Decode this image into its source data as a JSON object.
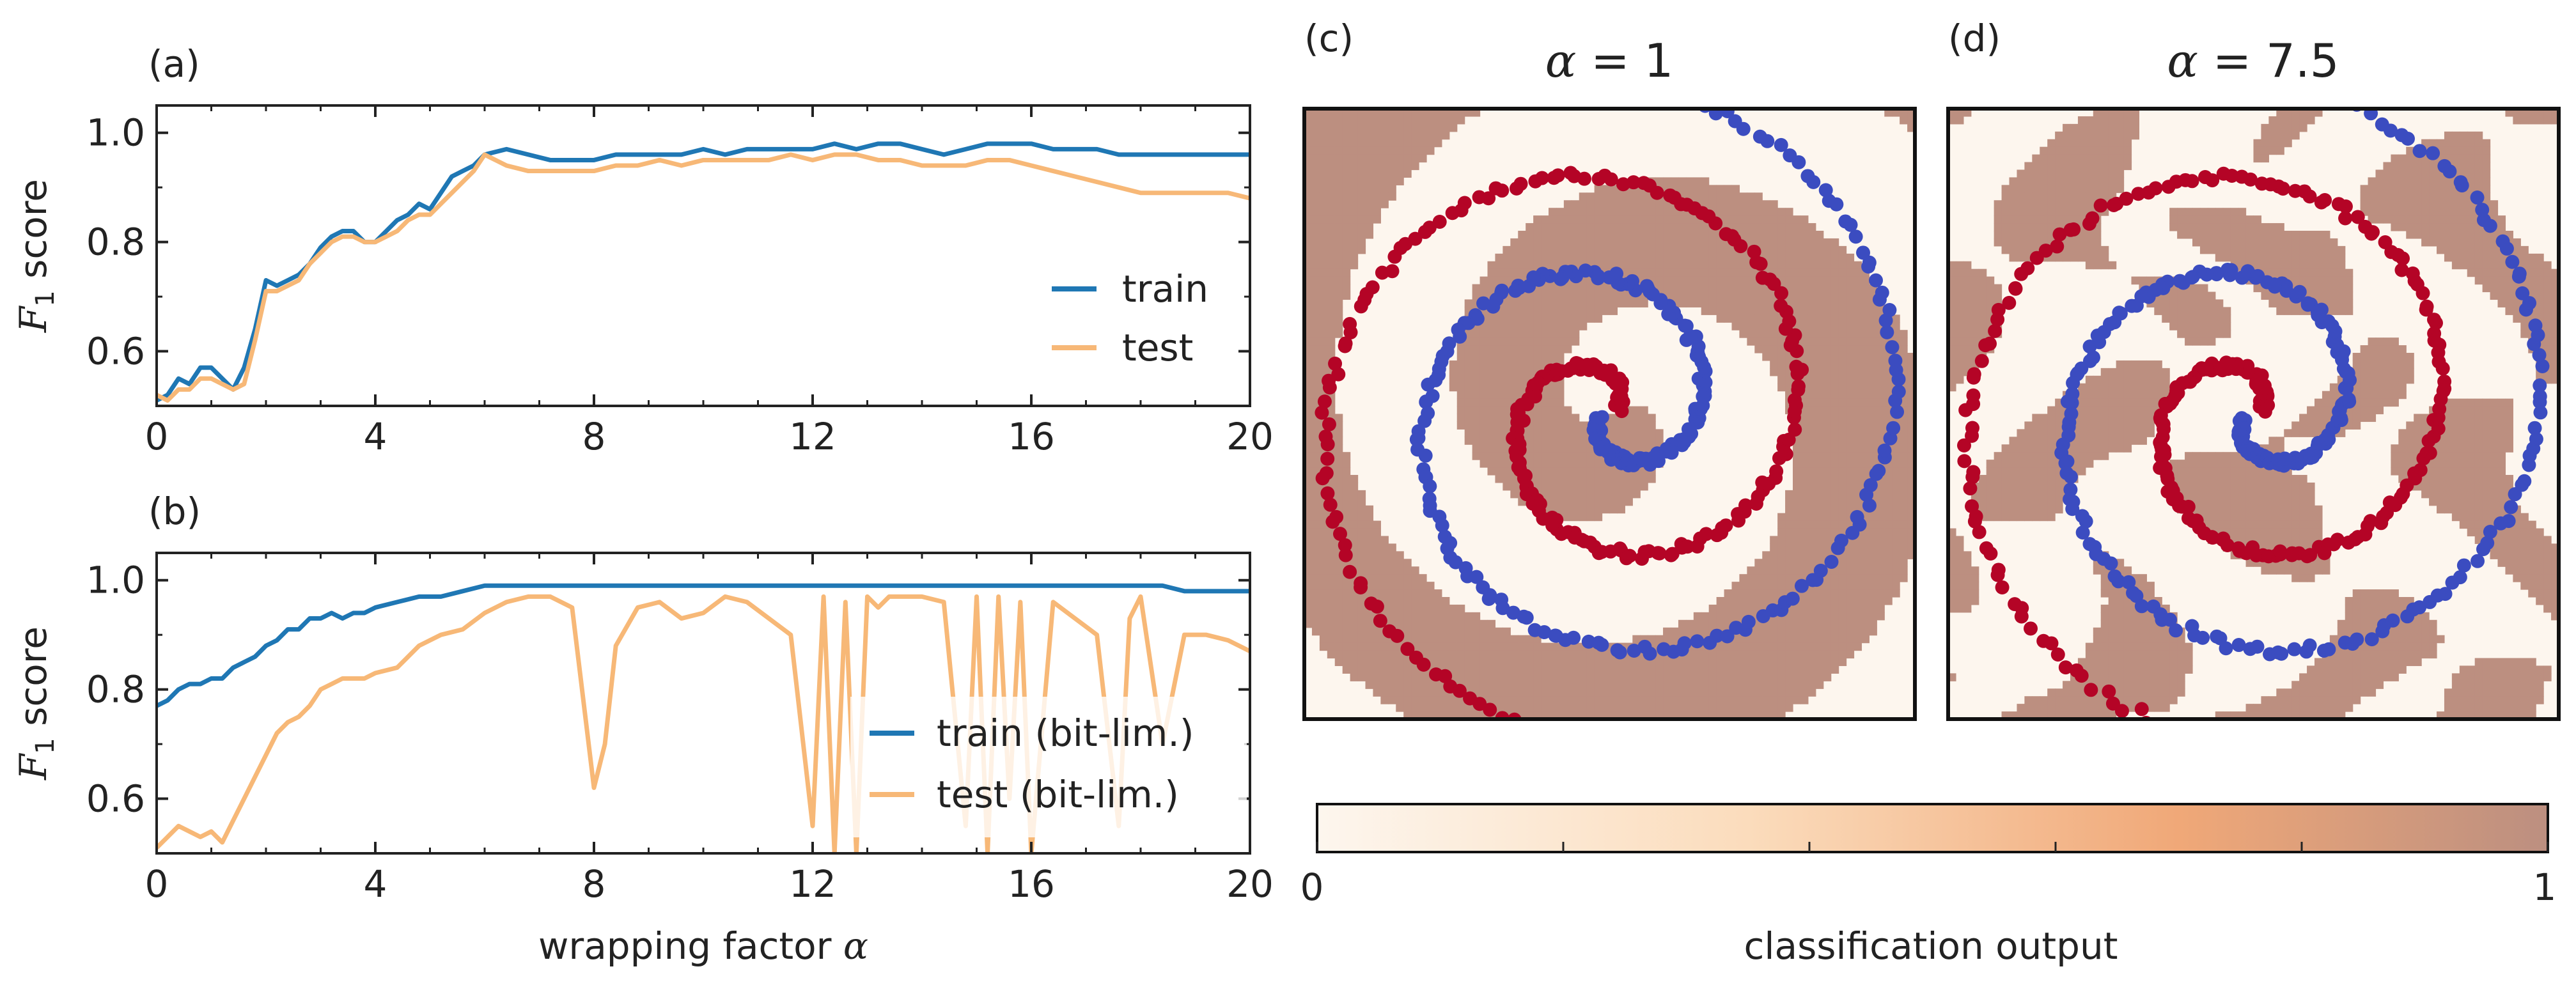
{
  "colors": {
    "train": "#1f77b4",
    "test": "#f7b877",
    "spiral_red": "#b40426",
    "spiral_blue": "#3b4cc0",
    "region_low": "#fdf6ee",
    "region_high": "#bc8f80"
  },
  "chart_data": [
    {
      "id": "a",
      "type": "line",
      "panel_label": "(a)",
      "xlabel": "",
      "ylabel_prefix": "F",
      "ylabel_sub": "1",
      "ylabel_suffix": " score",
      "xlim": [
        0,
        20
      ],
      "ylim": [
        0.5,
        1.05
      ],
      "xticks": [
        0,
        4,
        8,
        12,
        16,
        20
      ],
      "yticks": [
        0.6,
        0.8,
        1.0
      ],
      "xticklabels": [
        "0",
        "4",
        "8",
        "12",
        "16",
        "20"
      ],
      "yticklabels": [
        "0.6",
        "0.8",
        "1.0"
      ],
      "legend_position": "center-right",
      "x": [
        0,
        0.2,
        0.4,
        0.6,
        0.8,
        1.0,
        1.2,
        1.4,
        1.6,
        1.8,
        2.0,
        2.2,
        2.4,
        2.6,
        2.8,
        3.0,
        3.2,
        3.4,
        3.6,
        3.8,
        4.0,
        4.2,
        4.4,
        4.6,
        4.8,
        5.0,
        5.2,
        5.4,
        5.6,
        5.8,
        6.0,
        6.4,
        6.8,
        7.2,
        7.6,
        8.0,
        8.4,
        8.8,
        9.2,
        9.6,
        10.0,
        10.4,
        10.8,
        11.2,
        11.6,
        12.0,
        12.4,
        12.8,
        13.2,
        13.6,
        14.0,
        14.4,
        14.8,
        15.2,
        15.6,
        16.0,
        16.4,
        16.8,
        17.2,
        17.6,
        18.0,
        18.4,
        18.8,
        19.2,
        19.6,
        20.0
      ],
      "series": [
        {
          "name": "train",
          "color": "#1f77b4",
          "values": [
            0.51,
            0.52,
            0.55,
            0.54,
            0.57,
            0.57,
            0.55,
            0.53,
            0.57,
            0.64,
            0.73,
            0.72,
            0.73,
            0.74,
            0.76,
            0.79,
            0.81,
            0.82,
            0.82,
            0.8,
            0.8,
            0.82,
            0.84,
            0.85,
            0.87,
            0.86,
            0.89,
            0.92,
            0.93,
            0.94,
            0.96,
            0.97,
            0.96,
            0.95,
            0.95,
            0.95,
            0.96,
            0.96,
            0.96,
            0.96,
            0.97,
            0.96,
            0.97,
            0.97,
            0.97,
            0.97,
            0.98,
            0.97,
            0.98,
            0.98,
            0.97,
            0.96,
            0.97,
            0.98,
            0.98,
            0.98,
            0.97,
            0.97,
            0.97,
            0.96,
            0.96,
            0.96,
            0.96,
            0.96,
            0.96,
            0.96
          ]
        },
        {
          "name": "test",
          "color": "#f7b877",
          "values": [
            0.52,
            0.51,
            0.53,
            0.53,
            0.55,
            0.55,
            0.54,
            0.53,
            0.54,
            0.62,
            0.71,
            0.71,
            0.72,
            0.73,
            0.76,
            0.78,
            0.8,
            0.81,
            0.81,
            0.8,
            0.8,
            0.81,
            0.82,
            0.84,
            0.85,
            0.85,
            0.87,
            0.89,
            0.91,
            0.93,
            0.96,
            0.94,
            0.93,
            0.93,
            0.93,
            0.93,
            0.94,
            0.94,
            0.95,
            0.94,
            0.95,
            0.95,
            0.95,
            0.95,
            0.96,
            0.95,
            0.96,
            0.96,
            0.95,
            0.95,
            0.94,
            0.94,
            0.94,
            0.95,
            0.95,
            0.94,
            0.93,
            0.92,
            0.91,
            0.9,
            0.89,
            0.89,
            0.89,
            0.89,
            0.89,
            0.88
          ]
        }
      ]
    },
    {
      "id": "b",
      "type": "line",
      "panel_label": "(b)",
      "xlabel": "wrapping factor ",
      "xlabel_symbol": "α",
      "ylabel_prefix": "F",
      "ylabel_sub": "1",
      "ylabel_suffix": " score",
      "xlim": [
        0,
        20
      ],
      "ylim": [
        0.5,
        1.05
      ],
      "xticks": [
        0,
        4,
        8,
        12,
        16,
        20
      ],
      "yticks": [
        0.6,
        0.8,
        1.0
      ],
      "xticklabels": [
        "0",
        "4",
        "8",
        "12",
        "16",
        "20"
      ],
      "yticklabels": [
        "0.6",
        "0.8",
        "1.0"
      ],
      "legend_position": "lower-right",
      "x": [
        0,
        0.2,
        0.4,
        0.6,
        0.8,
        1.0,
        1.2,
        1.4,
        1.6,
        1.8,
        2.0,
        2.2,
        2.4,
        2.6,
        2.8,
        3.0,
        3.2,
        3.4,
        3.6,
        3.8,
        4.0,
        4.4,
        4.8,
        5.2,
        5.6,
        6.0,
        6.4,
        6.8,
        7.2,
        7.6,
        8.0,
        8.2,
        8.4,
        8.8,
        9.2,
        9.6,
        10.0,
        10.4,
        10.8,
        11.2,
        11.6,
        12.0,
        12.2,
        12.4,
        12.6,
        12.8,
        13.0,
        13.2,
        13.4,
        13.6,
        14.0,
        14.4,
        14.8,
        15.0,
        15.2,
        15.4,
        15.6,
        15.8,
        16.0,
        16.4,
        16.8,
        17.2,
        17.6,
        17.8,
        18.0,
        18.4,
        18.8,
        19.2,
        19.6,
        20.0
      ],
      "series": [
        {
          "name": "train (bit-lim.)",
          "color": "#1f77b4",
          "values": [
            0.77,
            0.78,
            0.8,
            0.81,
            0.81,
            0.82,
            0.82,
            0.84,
            0.85,
            0.86,
            0.88,
            0.89,
            0.91,
            0.91,
            0.93,
            0.93,
            0.94,
            0.93,
            0.94,
            0.94,
            0.95,
            0.96,
            0.97,
            0.97,
            0.98,
            0.99,
            0.99,
            0.99,
            0.99,
            0.99,
            0.99,
            0.99,
            0.99,
            0.99,
            0.99,
            0.99,
            0.99,
            0.99,
            0.99,
            0.99,
            0.99,
            0.99,
            0.99,
            0.99,
            0.99,
            0.99,
            0.99,
            0.99,
            0.99,
            0.99,
            0.99,
            0.99,
            0.99,
            0.99,
            0.99,
            0.99,
            0.99,
            0.99,
            0.99,
            0.99,
            0.99,
            0.99,
            0.99,
            0.99,
            0.99,
            0.99,
            0.98,
            0.98,
            0.98,
            0.98
          ]
        },
        {
          "name": "test (bit-lim.)",
          "color": "#f7b877",
          "values": [
            0.51,
            0.53,
            0.55,
            0.54,
            0.53,
            0.54,
            0.52,
            0.56,
            0.6,
            0.64,
            0.68,
            0.72,
            0.74,
            0.75,
            0.77,
            0.8,
            0.81,
            0.82,
            0.82,
            0.82,
            0.83,
            0.84,
            0.88,
            0.9,
            0.91,
            0.94,
            0.96,
            0.97,
            0.97,
            0.95,
            0.62,
            0.7,
            0.88,
            0.95,
            0.96,
            0.93,
            0.94,
            0.97,
            0.96,
            0.93,
            0.9,
            0.55,
            0.97,
            0.5,
            0.96,
            0.5,
            0.97,
            0.95,
            0.97,
            0.97,
            0.97,
            0.96,
            0.55,
            0.97,
            0.5,
            0.97,
            0.6,
            0.96,
            0.5,
            0.96,
            0.93,
            0.9,
            0.55,
            0.93,
            0.97,
            0.7,
            0.9,
            0.9,
            0.89,
            0.87
          ]
        }
      ]
    },
    {
      "id": "c",
      "type": "scatter",
      "panel_label": "(c)",
      "title_symbol": "α",
      "title_value": " = 1",
      "classes": [
        "red",
        "blue"
      ],
      "region_freq": 1
    },
    {
      "id": "d",
      "type": "scatter",
      "panel_label": "(d)",
      "title_symbol": "α",
      "title_value": " = 7.5",
      "classes": [
        "red",
        "blue"
      ],
      "region_freq": 7.5
    }
  ],
  "colorbar": {
    "label": "classification output",
    "min_label": "0",
    "max_label": "1",
    "ticks": [
      0,
      0.2,
      0.4,
      0.6,
      0.8,
      1.0
    ]
  }
}
